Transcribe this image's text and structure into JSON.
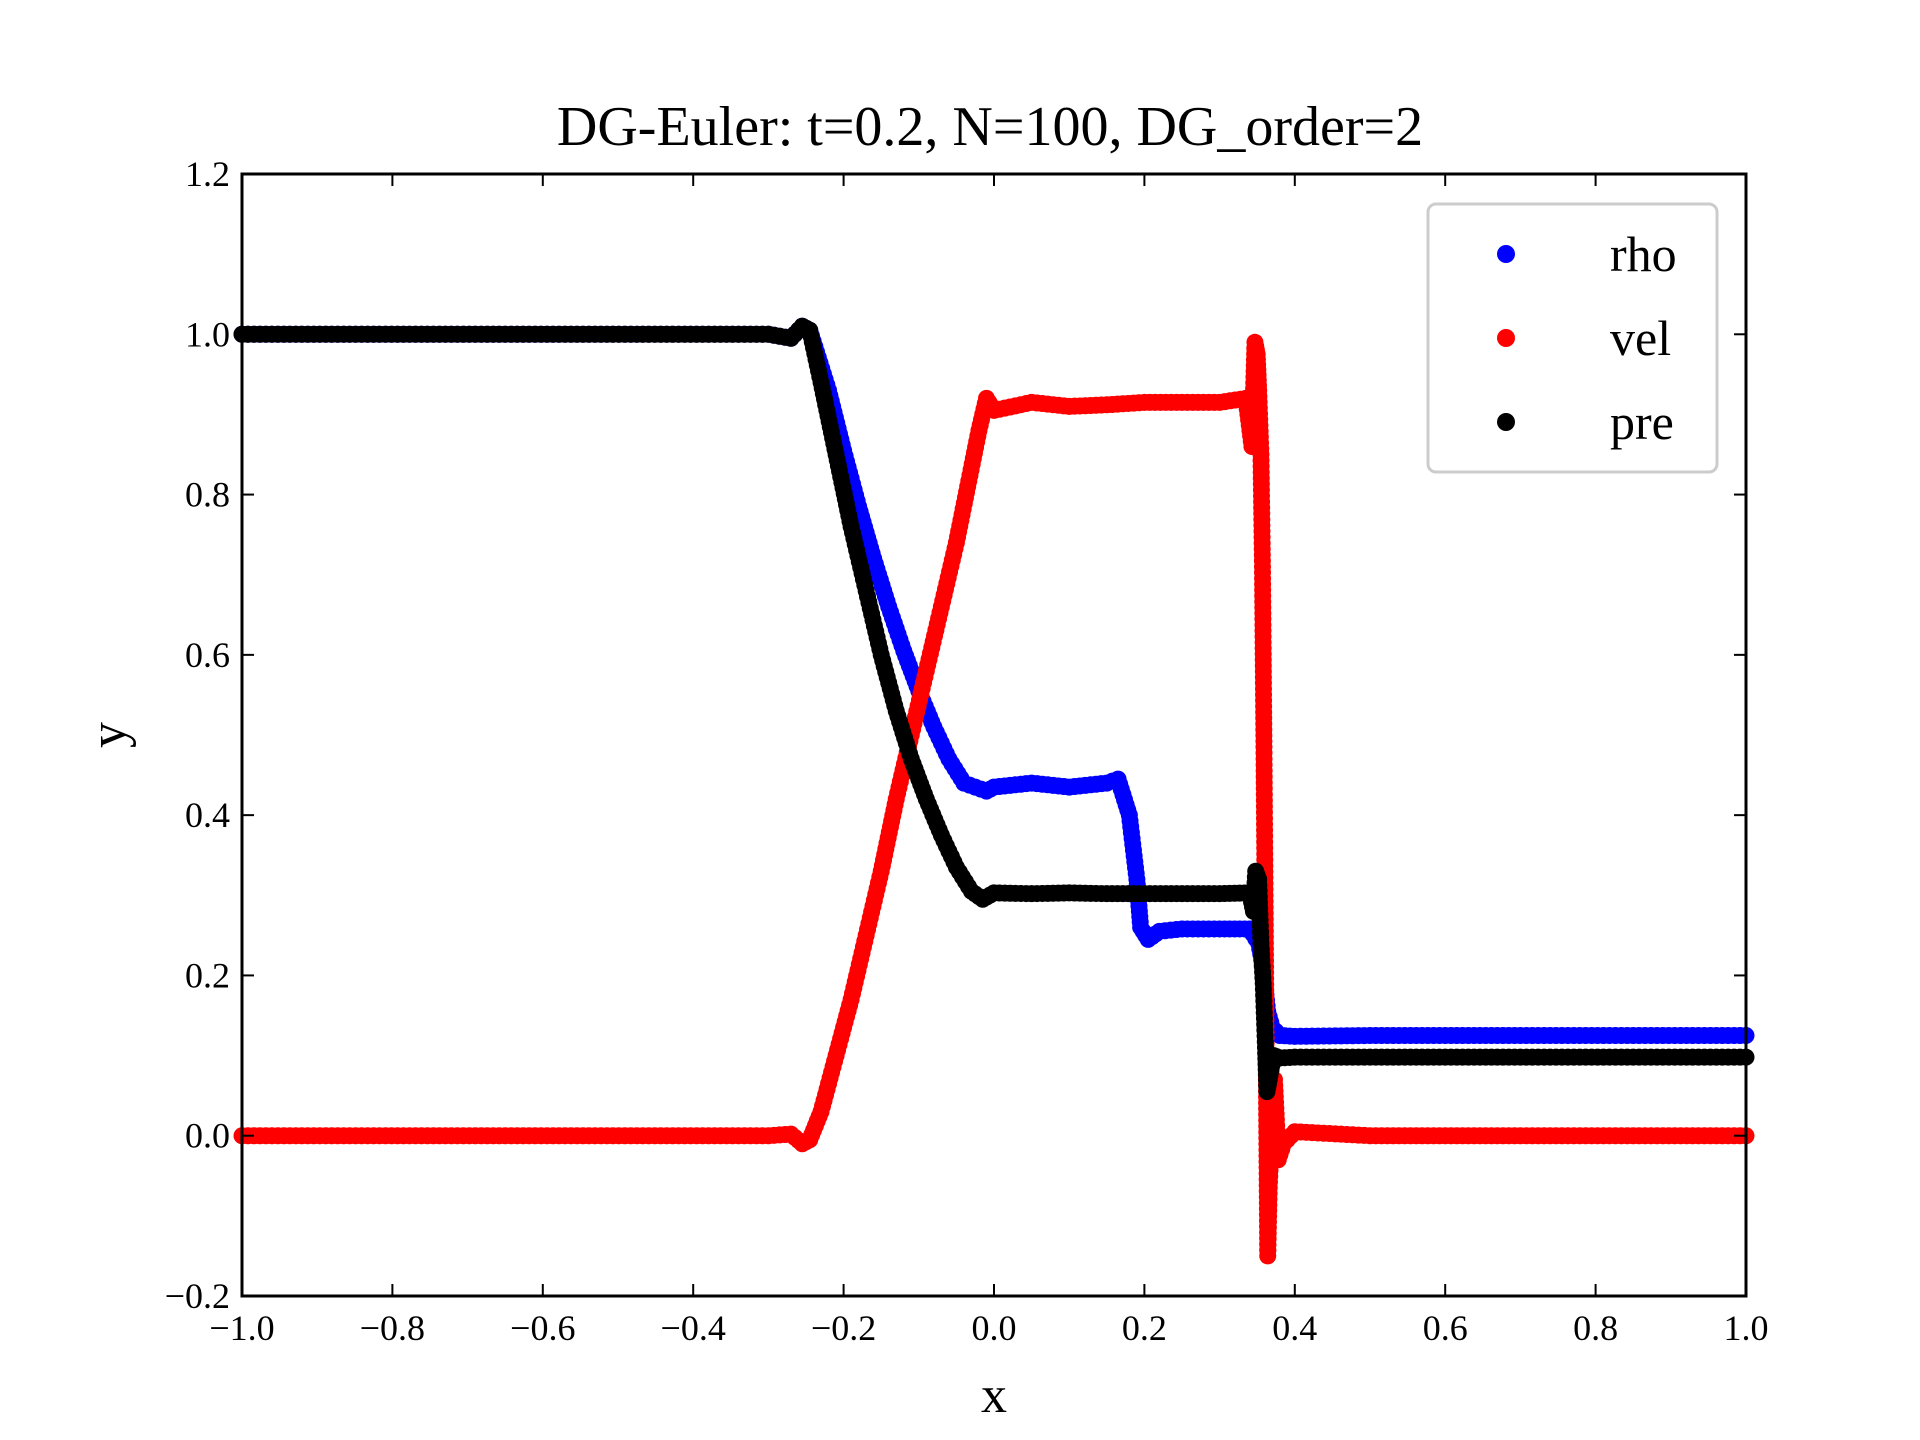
{
  "chart_data": {
    "type": "scatter",
    "title": "DG-Euler: t=0.2, N=100, DG_order=2",
    "xlabel": "x",
    "ylabel": "y",
    "xlim": [
      -1.0,
      1.0
    ],
    "ylim": [
      -0.2,
      1.2
    ],
    "xticks": [
      "−1.0",
      "−0.8",
      "−0.6",
      "−0.4",
      "−0.2",
      "0.0",
      "0.2",
      "0.4",
      "0.6",
      "0.8",
      "1.0"
    ],
    "yticks": [
      "−0.2",
      "0.0",
      "0.2",
      "0.4",
      "0.6",
      "0.8",
      "1.0",
      "1.2"
    ],
    "grid": false,
    "legend_position": "top-right",
    "series": [
      {
        "name": "rho",
        "color": "#0000ff",
        "points": [
          [
            -1.0,
            1.0
          ],
          [
            -0.3,
            1.0
          ],
          [
            -0.27,
            0.995
          ],
          [
            -0.255,
            1.01
          ],
          [
            -0.245,
            1.005
          ],
          [
            -0.22,
            0.93
          ],
          [
            -0.2,
            0.855
          ],
          [
            -0.18,
            0.785
          ],
          [
            -0.16,
            0.72
          ],
          [
            -0.14,
            0.66
          ],
          [
            -0.12,
            0.605
          ],
          [
            -0.1,
            0.555
          ],
          [
            -0.08,
            0.51
          ],
          [
            -0.06,
            0.47
          ],
          [
            -0.04,
            0.44
          ],
          [
            -0.01,
            0.43
          ],
          [
            0.0,
            0.435
          ],
          [
            0.05,
            0.44
          ],
          [
            0.1,
            0.435
          ],
          [
            0.15,
            0.44
          ],
          [
            0.165,
            0.445
          ],
          [
            0.18,
            0.4
          ],
          [
            0.19,
            0.32
          ],
          [
            0.195,
            0.26
          ],
          [
            0.205,
            0.245
          ],
          [
            0.22,
            0.255
          ],
          [
            0.25,
            0.258
          ],
          [
            0.3,
            0.258
          ],
          [
            0.34,
            0.258
          ],
          [
            0.352,
            0.24
          ],
          [
            0.356,
            0.22
          ],
          [
            0.36,
            0.19
          ],
          [
            0.364,
            0.155
          ],
          [
            0.37,
            0.135
          ],
          [
            0.38,
            0.125
          ],
          [
            0.4,
            0.124
          ],
          [
            0.5,
            0.125
          ],
          [
            0.7,
            0.125
          ],
          [
            1.0,
            0.125
          ]
        ]
      },
      {
        "name": "vel",
        "color": "#ff0000",
        "points": [
          [
            -1.0,
            0.0
          ],
          [
            -0.3,
            0.0
          ],
          [
            -0.27,
            0.002
          ],
          [
            -0.255,
            -0.01
          ],
          [
            -0.245,
            -0.005
          ],
          [
            -0.23,
            0.03
          ],
          [
            -0.21,
            0.1
          ],
          [
            -0.19,
            0.17
          ],
          [
            -0.17,
            0.25
          ],
          [
            -0.15,
            0.33
          ],
          [
            -0.13,
            0.42
          ],
          [
            -0.11,
            0.5
          ],
          [
            -0.09,
            0.58
          ],
          [
            -0.07,
            0.66
          ],
          [
            -0.05,
            0.74
          ],
          [
            -0.035,
            0.81
          ],
          [
            -0.02,
            0.88
          ],
          [
            -0.01,
            0.92
          ],
          [
            0.0,
            0.905
          ],
          [
            0.05,
            0.915
          ],
          [
            0.1,
            0.91
          ],
          [
            0.15,
            0.912
          ],
          [
            0.2,
            0.915
          ],
          [
            0.25,
            0.915
          ],
          [
            0.3,
            0.915
          ],
          [
            0.335,
            0.92
          ],
          [
            0.343,
            0.86
          ],
          [
            0.347,
            0.99
          ],
          [
            0.35,
            0.975
          ],
          [
            0.352,
            0.93
          ],
          [
            0.355,
            0.85
          ],
          [
            0.357,
            0.71
          ],
          [
            0.359,
            0.485
          ],
          [
            0.362,
            0.1
          ],
          [
            0.364,
            -0.15
          ],
          [
            0.366,
            -0.065
          ],
          [
            0.369,
            0.0
          ],
          [
            0.373,
            0.07
          ],
          [
            0.378,
            -0.03
          ],
          [
            0.385,
            -0.01
          ],
          [
            0.4,
            0.005
          ],
          [
            0.5,
            0.0
          ],
          [
            0.7,
            0.0
          ],
          [
            1.0,
            0.0
          ]
        ]
      },
      {
        "name": "pre",
        "color": "#000000",
        "points": [
          [
            -1.0,
            1.0
          ],
          [
            -0.3,
            1.0
          ],
          [
            -0.27,
            0.995
          ],
          [
            -0.255,
            1.01
          ],
          [
            -0.245,
            1.005
          ],
          [
            -0.23,
            0.94
          ],
          [
            -0.21,
            0.85
          ],
          [
            -0.19,
            0.76
          ],
          [
            -0.17,
            0.68
          ],
          [
            -0.15,
            0.6
          ],
          [
            -0.13,
            0.53
          ],
          [
            -0.11,
            0.47
          ],
          [
            -0.09,
            0.42
          ],
          [
            -0.07,
            0.375
          ],
          [
            -0.05,
            0.335
          ],
          [
            -0.03,
            0.305
          ],
          [
            -0.015,
            0.295
          ],
          [
            0.0,
            0.303
          ],
          [
            0.05,
            0.302
          ],
          [
            0.1,
            0.303
          ],
          [
            0.15,
            0.302
          ],
          [
            0.2,
            0.302
          ],
          [
            0.25,
            0.302
          ],
          [
            0.3,
            0.302
          ],
          [
            0.34,
            0.303
          ],
          [
            0.345,
            0.28
          ],
          [
            0.348,
            0.33
          ],
          [
            0.352,
            0.32
          ],
          [
            0.355,
            0.24
          ],
          [
            0.358,
            0.19
          ],
          [
            0.361,
            0.11
          ],
          [
            0.363,
            0.055
          ],
          [
            0.366,
            0.07
          ],
          [
            0.372,
            0.1
          ],
          [
            0.38,
            0.097
          ],
          [
            0.4,
            0.098
          ],
          [
            0.5,
            0.098
          ],
          [
            0.7,
            0.098
          ],
          [
            1.0,
            0.098
          ]
        ]
      }
    ]
  }
}
